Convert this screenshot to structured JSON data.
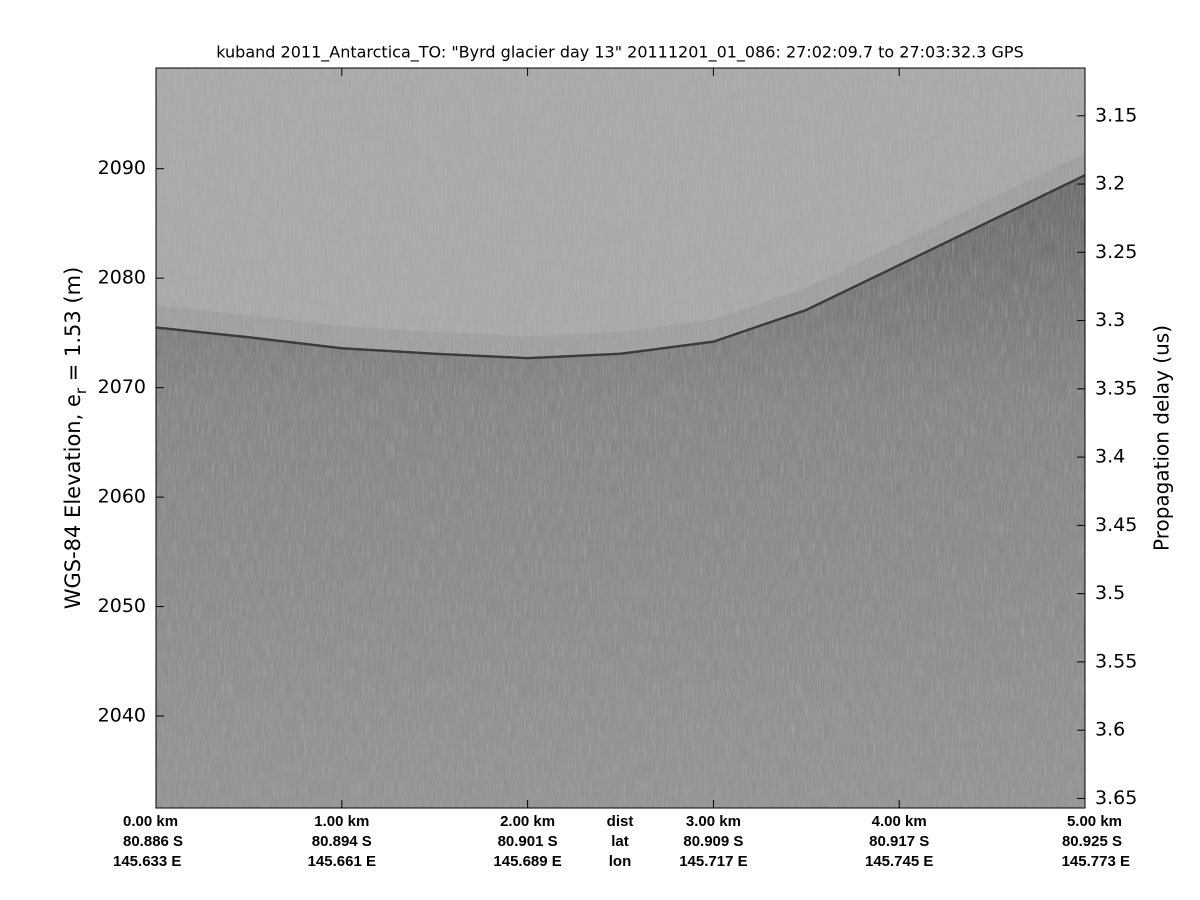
{
  "chart_data": {
    "type": "echogram",
    "title": "kuband 2011_Antarctica_TO: \"Byrd glacier day 13\"  20111201_01_086: 27:02:09.7 to 27:03:32.3 GPS",
    "ylabel": [
      "WGS-84 Elevation, e",
      "r",
      " = 1.53 (m)"
    ],
    "y2label": "Propagation delay (us)",
    "xlim": [
      0,
      5
    ],
    "xticks": [
      {
        "value": 0,
        "label": "0.00 km"
      },
      {
        "value": 1,
        "label": "1.00 km"
      },
      {
        "value": 2,
        "label": "2.00 km"
      },
      {
        "value": 3,
        "label": "3.00 km"
      },
      {
        "value": 4,
        "label": "4.00 km"
      },
      {
        "value": 5,
        "label": "5.00 km"
      }
    ],
    "lat_labels": [
      "80.886 S",
      "80.894 S",
      "80.901 S",
      "80.909 S",
      "80.917 S",
      "80.925 S"
    ],
    "lon_labels": [
      "145.633 E",
      "145.661 E",
      "145.689 E",
      "145.717 E",
      "145.745 E",
      "145.773 E"
    ],
    "row_names": [
      "dist",
      "lat",
      "lon"
    ],
    "ylim": [
      2031.6,
      2099.2
    ],
    "yticks": [
      2040,
      2050,
      2060,
      2070,
      2080,
      2090
    ],
    "y2lim": [
      3.657,
      3.115
    ],
    "y2ticks": [
      3.15,
      3.2,
      3.25,
      3.3,
      3.35,
      3.4,
      3.45,
      3.5,
      3.55,
      3.6,
      3.65
    ],
    "x": [
      0,
      0.5,
      1,
      1.5,
      2,
      2.5,
      3,
      3.5,
      4,
      4.5,
      5
    ],
    "series": [
      {
        "color": "#3c3c3c",
        "values": [
          2075.5,
          2074.6,
          2073.6,
          2073.1,
          2072.7,
          2073.1,
          2074.2,
          2077.1,
          2081.2,
          2085.3,
          2089.4
        ]
      }
    ]
  }
}
